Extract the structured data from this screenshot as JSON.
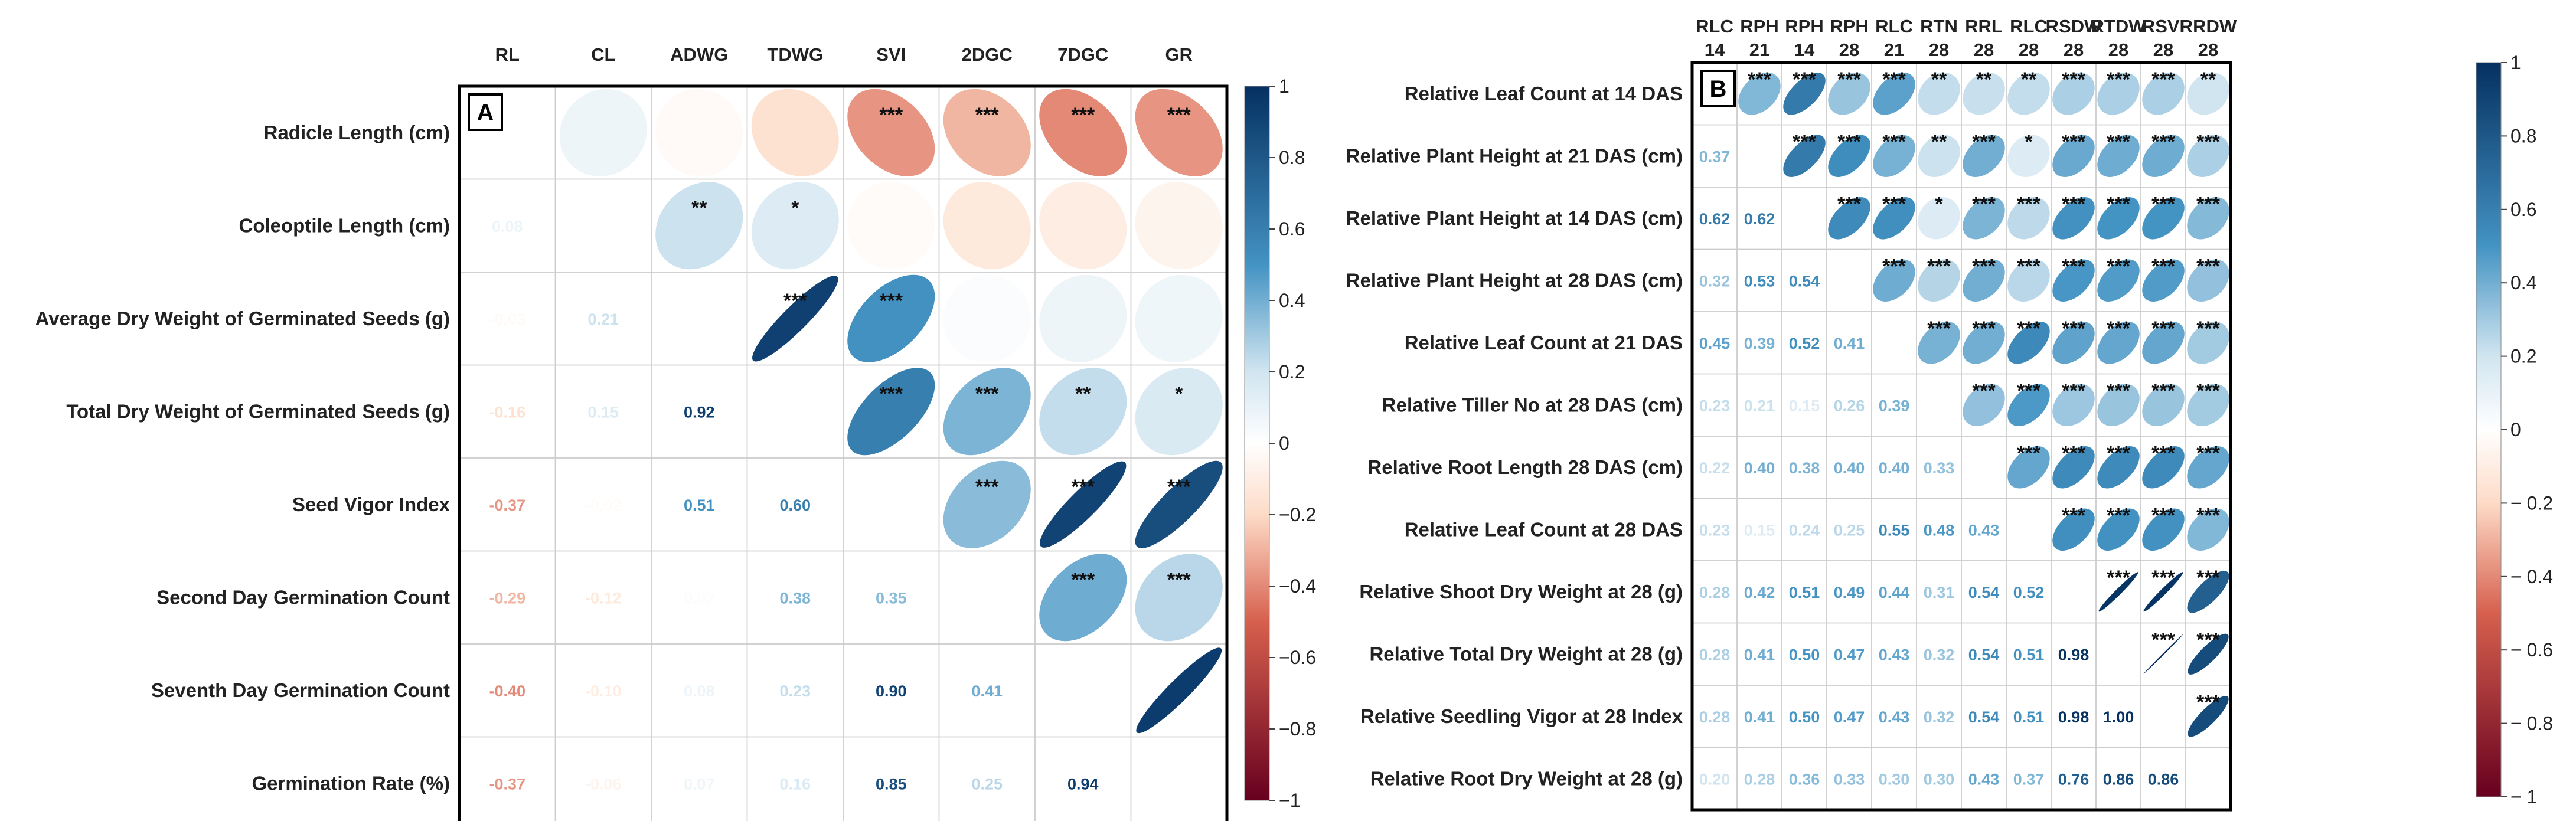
{
  "colors": {
    "negative_strong": "#67001F",
    "negative_mid": "#D6604D",
    "negative_light": "#FDDBC7",
    "neutral": "#FFFFFF",
    "positive_light": "#D1E5F0",
    "positive_mid": "#4393C3",
    "positive_strong": "#053061",
    "grid": "#CCCCCC",
    "frame": "#000000"
  },
  "chart_data": [
    {
      "type": "heatmap",
      "panel_label": "A",
      "title": "",
      "colorbar_ticks": [
        "1",
        "0.8",
        "0.6",
        "0.4",
        "0.2",
        "0",
        "−0.2",
        "−0.4",
        "−0.6",
        "−0.8",
        "−1"
      ],
      "colorbar_range": [
        -1,
        1
      ],
      "column_labels": [
        "RL",
        "CL",
        "ADWG",
        "TDWG",
        "SVI",
        "2DGC",
        "7DGC",
        "GR"
      ],
      "row_labels": [
        "Radicle Length (cm)",
        "Coleoptile Length (cm)",
        "Average Dry Weight of Germinated Seeds (g)",
        "Total Dry Weight of Germinated Seeds (g)",
        "Seed Vigor Index",
        "Second Day Germination Count",
        "Seventh Day Germination Count",
        "Germination Rate (%)"
      ],
      "lower_labels": [
        [
          "",
          "",
          "",
          "",
          "",
          "",
          "",
          ""
        ],
        [
          "0.08",
          "",
          "",
          "",
          "",
          "",
          "",
          ""
        ],
        [
          "-0.03",
          "0.21",
          "",
          "",
          "",
          "",
          "",
          ""
        ],
        [
          "-0.16",
          "0.15",
          "0.92",
          "",
          "",
          "",
          "",
          ""
        ],
        [
          "-0.37",
          "-0.02",
          "0.51",
          "0.60",
          "",
          "",
          "",
          ""
        ],
        [
          "-0.29",
          "-0.12",
          "0.02",
          "0.38",
          "0.35",
          "",
          "",
          ""
        ],
        [
          "-0.40",
          "-0.10",
          "0.08",
          "0.23",
          "0.90",
          "0.41",
          "",
          ""
        ],
        [
          "-0.37",
          "-0.06",
          "0.07",
          "0.16",
          "0.85",
          "0.25",
          "0.94",
          ""
        ]
      ],
      "upper_stars": [
        [
          "",
          "",
          "",
          "",
          "***",
          "***",
          "***",
          "***"
        ],
        [
          "",
          "",
          "**",
          "*",
          "",
          "",
          "",
          ""
        ],
        [
          "",
          "",
          "",
          "***",
          "***",
          "",
          "",
          ""
        ],
        [
          "",
          "",
          "",
          "",
          "***",
          "***",
          "**",
          "*"
        ],
        [
          "",
          "",
          "",
          "",
          "",
          "***",
          "***",
          "***"
        ],
        [
          "",
          "",
          "",
          "",
          "",
          "",
          "***",
          "***"
        ],
        [
          "",
          "",
          "",
          "",
          "",
          "",
          "",
          ""
        ],
        [
          "",
          "",
          "",
          "",
          "",
          "",
          "",
          ""
        ]
      ]
    },
    {
      "type": "heatmap",
      "panel_label": "B",
      "title": "",
      "colorbar_ticks": [
        "1",
        "0.8",
        "0.6",
        "0.4",
        "0.2",
        "0",
        "− 0.2",
        "− 0.4",
        "− 0.6",
        "− 0.8",
        "− 1"
      ],
      "colorbar_range": [
        -1,
        1
      ],
      "column_labels": [
        [
          "RLC",
          "14"
        ],
        [
          "RPH",
          "21"
        ],
        [
          "RPH",
          "14"
        ],
        [
          "RPH",
          "28"
        ],
        [
          "RLC",
          "21"
        ],
        [
          "RTN",
          "28"
        ],
        [
          "RRL",
          "28"
        ],
        [
          "RLC",
          "28"
        ],
        [
          "RSDW",
          "28"
        ],
        [
          "RTDW",
          "28"
        ],
        [
          "RSVI",
          "28"
        ],
        [
          "RRDW",
          "28"
        ]
      ],
      "row_labels": [
        "Relative Leaf Count at 14 DAS",
        "Relative Plant Height at 21 DAS (cm)",
        "Relative Plant Height at 14 DAS (cm)",
        "Relative Plant Height at 28 DAS (cm)",
        "Relative Leaf Count at 21 DAS",
        "Relative Tiller No at 28 DAS (cm)",
        "Relative Root Length 28 DAS (cm)",
        "Relative Leaf Count at 28 DAS",
        "Relative Shoot Dry Weight at 28 (g)",
        "Relative Total Dry Weight at 28 (g)",
        "Relative Seedling Vigor at 28 Index",
        "Relative Root Dry Weight at 28 (g)"
      ],
      "lower_labels": [
        [
          "",
          "",
          "",
          "",
          "",
          "",
          "",
          "",
          "",
          "",
          "",
          ""
        ],
        [
          "0.37",
          "",
          "",
          "",
          "",
          "",
          "",
          "",
          "",
          "",
          "",
          ""
        ],
        [
          "0.62",
          "0.62",
          "",
          "",
          "",
          "",
          "",
          "",
          "",
          "",
          "",
          ""
        ],
        [
          "0.32",
          "0.53",
          "0.54",
          "",
          "",
          "",
          "",
          "",
          "",
          "",
          "",
          ""
        ],
        [
          "0.45",
          "0.39",
          "0.52",
          "0.41",
          "",
          "",
          "",
          "",
          "",
          "",
          "",
          ""
        ],
        [
          "0.23",
          "0.21",
          "0.15",
          "0.26",
          "0.39",
          "",
          "",
          "",
          "",
          "",
          "",
          ""
        ],
        [
          "0.22",
          "0.40",
          "0.38",
          "0.40",
          "0.40",
          "0.33",
          "",
          "",
          "",
          "",
          "",
          ""
        ],
        [
          "0.23",
          "0.15",
          "0.24",
          "0.25",
          "0.55",
          "0.48",
          "0.43",
          "",
          "",
          "",
          "",
          ""
        ],
        [
          "0.28",
          "0.42",
          "0.51",
          "0.49",
          "0.44",
          "0.31",
          "0.54",
          "0.52",
          "",
          "",
          "",
          ""
        ],
        [
          "0.28",
          "0.41",
          "0.50",
          "0.47",
          "0.43",
          "0.32",
          "0.54",
          "0.51",
          "0.98",
          "",
          "",
          ""
        ],
        [
          "0.28",
          "0.41",
          "0.50",
          "0.47",
          "0.43",
          "0.32",
          "0.54",
          "0.51",
          "0.98",
          "1.00",
          "",
          ""
        ],
        [
          "0.20",
          "0.28",
          "0.36",
          "0.33",
          "0.30",
          "0.30",
          "0.43",
          "0.37",
          "0.76",
          "0.86",
          "0.86",
          ""
        ]
      ],
      "upper_stars": [
        [
          "",
          "***",
          "***",
          "***",
          "***",
          "**",
          "**",
          "**",
          "***",
          "***",
          "***",
          "**"
        ],
        [
          "",
          "",
          "***",
          "***",
          "***",
          "**",
          "***",
          "*",
          "***",
          "***",
          "***",
          "***"
        ],
        [
          "",
          "",
          "",
          "***",
          "***",
          "*",
          "***",
          "***",
          "***",
          "***",
          "***",
          "***"
        ],
        [
          "",
          "",
          "",
          "",
          "***",
          "***",
          "***",
          "***",
          "***",
          "***",
          "***",
          "***"
        ],
        [
          "",
          "",
          "",
          "",
          "",
          "***",
          "***",
          "***",
          "***",
          "***",
          "***",
          "***"
        ],
        [
          "",
          "",
          "",
          "",
          "",
          "",
          "***",
          "***",
          "***",
          "***",
          "***",
          "***"
        ],
        [
          "",
          "",
          "",
          "",
          "",
          "",
          "",
          "***",
          "***",
          "***",
          "***",
          "***"
        ],
        [
          "",
          "",
          "",
          "",
          "",
          "",
          "",
          "",
          "***",
          "***",
          "***",
          "***"
        ],
        [
          "",
          "",
          "",
          "",
          "",
          "",
          "",
          "",
          "",
          "***",
          "***",
          "***"
        ],
        [
          "",
          "",
          "",
          "",
          "",
          "",
          "",
          "",
          "",
          "",
          "***",
          "***"
        ],
        [
          "",
          "",
          "",
          "",
          "",
          "",
          "",
          "",
          "",
          "",
          "",
          "***"
        ],
        [
          "",
          "",
          "",
          "",
          "",
          "",
          "",
          "",
          "",
          "",
          "",
          ""
        ]
      ]
    }
  ]
}
